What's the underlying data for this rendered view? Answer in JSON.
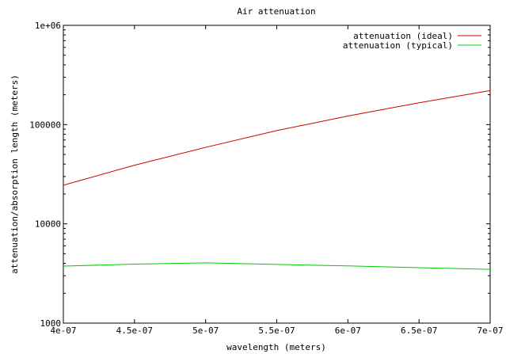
{
  "chart_data": {
    "type": "line",
    "title": "Air attenuation",
    "xlabel": "wavelength (meters)",
    "ylabel": "attenuation/absorption length (meters)",
    "x_scale": "linear",
    "y_scale": "log",
    "xlim": [
      4e-07,
      7e-07
    ],
    "ylim": [
      1000,
      1000000
    ],
    "x_ticks": [
      {
        "value": 4e-07,
        "label": "4e-07"
      },
      {
        "value": 4.5e-07,
        "label": "4.5e-07"
      },
      {
        "value": 5e-07,
        "label": "5e-07"
      },
      {
        "value": 5.5e-07,
        "label": "5.5e-07"
      },
      {
        "value": 6e-07,
        "label": "6e-07"
      },
      {
        "value": 6.5e-07,
        "label": "6.5e-07"
      },
      {
        "value": 7e-07,
        "label": "7e-07"
      }
    ],
    "y_ticks": [
      {
        "value": 1000,
        "label": "1000"
      },
      {
        "value": 10000,
        "label": "10000"
      },
      {
        "value": 100000,
        "label": "100000"
      },
      {
        "value": 1000000,
        "label": "1e+06"
      }
    ],
    "grid": false,
    "legend_position": "top-right",
    "series": [
      {
        "name": "attenuation (ideal)",
        "color": "#cc0000",
        "x": [
          4e-07,
          4.5e-07,
          5e-07,
          5.5e-07,
          6e-07,
          6.5e-07,
          7e-07
        ],
        "y": [
          24500,
          39000,
          59000,
          87000,
          122000,
          166000,
          220000
        ]
      },
      {
        "name": "attenuation (typical)",
        "color": "#00cc00",
        "x": [
          4e-07,
          4.5e-07,
          5e-07,
          5.5e-07,
          6e-07,
          6.5e-07,
          7e-07
        ],
        "y": [
          3750,
          3930,
          4050,
          3900,
          3770,
          3620,
          3480
        ]
      }
    ]
  }
}
